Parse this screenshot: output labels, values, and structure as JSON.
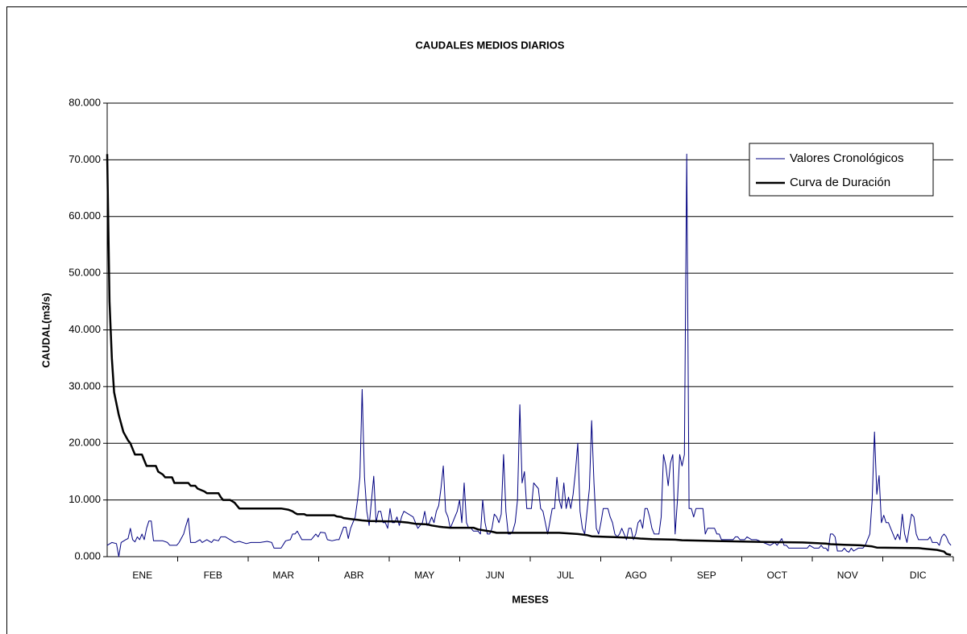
{
  "chart_data": {
    "type": "line",
    "title": "CAUDALES MEDIOS DIARIOS",
    "x_label": "MESES",
    "y_label": "CAUDAL(m3/s)",
    "categories": [
      "ENE",
      "FEB",
      "MAR",
      "ABR",
      "MAY",
      "JUN",
      "JUL",
      "AGO",
      "SEP",
      "OCT",
      "NOV",
      "DIC"
    ],
    "xlim": [
      0,
      365
    ],
    "ylim": [
      0,
      80
    ],
    "yticks": [
      {
        "value": 0,
        "label": "0.000"
      },
      {
        "value": 10,
        "label": "10.000"
      },
      {
        "value": 20,
        "label": "20.000"
      },
      {
        "value": 30,
        "label": "30.000"
      },
      {
        "value": 40,
        "label": "40.000"
      },
      {
        "value": 50,
        "label": "50.000"
      },
      {
        "value": 60,
        "label": "60.000"
      },
      {
        "value": 70,
        "label": "70.000"
      },
      {
        "value": 80,
        "label": "80.000"
      }
    ],
    "grid": true,
    "legend": "upper right",
    "series": [
      {
        "name": "Valores Cronológicos",
        "color": "#000080",
        "width": 1,
        "x": [
          0,
          2,
          4,
          5,
          6,
          8,
          9,
          10,
          11,
          12,
          13,
          14,
          15,
          16,
          17,
          18,
          19,
          20,
          24,
          26,
          27,
          30,
          31,
          33,
          34,
          35,
          36,
          38,
          40,
          41,
          43,
          45,
          46,
          48,
          49,
          51,
          53,
          55,
          57,
          60,
          62,
          64,
          66,
          69,
          71,
          72,
          75,
          77,
          79,
          80,
          81,
          82,
          84,
          85,
          88,
          90,
          91,
          92,
          94,
          95,
          97,
          99,
          100,
          102,
          103,
          104,
          105,
          106,
          107,
          108,
          109,
          110,
          111,
          112,
          113,
          115,
          116,
          117,
          118,
          119,
          120,
          121,
          122,
          123,
          124,
          125,
          126,
          127,
          128,
          130,
          132,
          133,
          134,
          136,
          137,
          138,
          139,
          140,
          141,
          142,
          143,
          144,
          145,
          146,
          147,
          148,
          150,
          151,
          152,
          153,
          154,
          155,
          156,
          157,
          158,
          160,
          161,
          162,
          163,
          164,
          165,
          166,
          167,
          168,
          169,
          170,
          171,
          172,
          173,
          174,
          175,
          176,
          177,
          178,
          179,
          180,
          181,
          183,
          184,
          186,
          187,
          188,
          189,
          190,
          192,
          193,
          194,
          195,
          196,
          197,
          198,
          199,
          200,
          201,
          202,
          203,
          204,
          205,
          206,
          207,
          208,
          209,
          210,
          211,
          212,
          213,
          214,
          216,
          217,
          218,
          219,
          220,
          221,
          222,
          224,
          225,
          226,
          227,
          228,
          229,
          230,
          231,
          232,
          233,
          234,
          235,
          236,
          238,
          239,
          240,
          241,
          242,
          243,
          244,
          245,
          246,
          247,
          248,
          249,
          250,
          251,
          252,
          253,
          254,
          256,
          257,
          258,
          259,
          262,
          263,
          264,
          265,
          266,
          270,
          271,
          272,
          273,
          275,
          276,
          278,
          280,
          283,
          286,
          288,
          289,
          291,
          292,
          293,
          294,
          297,
          300,
          302,
          303,
          305,
          307,
          308,
          309,
          310,
          311,
          312,
          313,
          314,
          315,
          317,
          318,
          319,
          320,
          321,
          322,
          324,
          326,
          327,
          329,
          330,
          331,
          332,
          333,
          334,
          335,
          336,
          337,
          338,
          339,
          340,
          341,
          342,
          343,
          344,
          345,
          346,
          347,
          348,
          349,
          350,
          354,
          355,
          356,
          358,
          359,
          360,
          361,
          362,
          363,
          364
        ],
        "values": [
          2.0,
          2.5,
          2.3,
          0,
          2.5,
          3,
          3.2,
          5,
          3,
          2.6,
          3.5,
          3,
          4,
          3,
          5,
          6.3,
          6.3,
          2.8,
          2.8,
          2.5,
          2,
          2,
          2.5,
          4,
          5.5,
          6.8,
          2.5,
          2.5,
          3,
          2.5,
          3,
          2.5,
          3,
          2.8,
          3.5,
          3.5,
          3,
          2.5,
          2.7,
          2.3,
          2.5,
          2.5,
          2.5,
          2.7,
          2.5,
          1.5,
          1.5,
          2.8,
          3,
          4,
          4,
          4.5,
          3,
          3,
          3,
          4,
          3.5,
          4.3,
          4.2,
          3,
          2.8,
          3,
          3,
          5.2,
          5.2,
          3.2,
          5,
          6,
          7,
          10,
          14,
          29.5,
          14,
          8,
          5.5,
          14.2,
          6,
          8,
          8,
          6,
          6,
          5,
          8.5,
          6,
          6,
          7,
          5.5,
          7,
          8,
          7.5,
          7,
          6,
          5,
          6,
          8,
          5.5,
          6,
          7,
          6,
          8,
          9,
          12,
          16,
          8,
          7,
          5,
          7,
          8,
          10,
          6,
          13,
          6,
          5,
          5,
          4.5,
          4.5,
          4,
          10,
          6,
          4,
          4,
          5,
          7.5,
          7,
          6,
          7.5,
          18,
          8,
          4,
          4,
          4.5,
          6,
          10,
          26.8,
          13,
          15,
          8.5,
          8.5,
          13,
          12,
          8.5,
          8,
          6,
          4,
          8.5,
          8.5,
          14,
          10,
          8.5,
          13,
          8.5,
          10.5,
          8.5,
          11,
          15,
          20,
          8,
          5,
          4,
          8,
          12,
          24,
          13,
          5,
          4,
          6,
          8.5,
          8.5,
          7,
          6,
          4,
          3.5,
          4,
          5,
          3,
          5,
          5,
          3,
          4,
          6,
          6.5,
          5,
          8.5,
          8.5,
          7,
          5,
          4,
          4,
          7,
          18,
          16,
          12.5,
          16.5,
          18,
          4,
          10,
          18,
          16,
          18,
          71,
          8.5,
          8.5,
          7,
          8.5,
          8.5,
          8.5,
          4,
          5,
          5,
          4,
          4,
          3,
          3,
          3,
          3.5,
          3.5,
          3,
          3,
          3.5,
          3,
          3,
          2.5,
          2,
          2.5,
          2,
          3.2,
          2,
          2,
          1.5,
          1.5,
          1.5,
          1.5,
          2,
          1.5,
          1.5,
          2,
          1.5,
          1.5,
          1,
          4,
          4,
          3.5,
          1,
          1,
          1.5,
          1,
          0.8,
          1.5,
          1,
          1.5,
          1.5,
          2,
          4,
          10,
          22,
          11,
          14.3,
          6,
          7.3,
          6,
          6,
          5,
          4,
          3,
          4,
          3,
          7.5,
          4,
          2.5,
          5,
          7.5,
          7,
          4,
          3,
          3,
          3.5,
          2.5,
          2.5,
          2,
          3.5,
          4,
          3.5,
          2.5,
          2
        ]
      },
      {
        "name": "Curva de Duración",
        "color": "#000000",
        "width": 2.5,
        "x": [
          0,
          1,
          2,
          3,
          5,
          7,
          9,
          10,
          11,
          12,
          15,
          16,
          17,
          21,
          22,
          24,
          25,
          28,
          29,
          35,
          36,
          38,
          39,
          42,
          43,
          48,
          49,
          50,
          53,
          55,
          56,
          57,
          75,
          78,
          80,
          81,
          82,
          85,
          86,
          98,
          99,
          101,
          102,
          106,
          108,
          110,
          113,
          125,
          130,
          133,
          138,
          140,
          143,
          145,
          148,
          158,
          160,
          163,
          166,
          168,
          195,
          203,
          207,
          209,
          215,
          222,
          227,
          230,
          235,
          245,
          248,
          258,
          270,
          283,
          300,
          310,
          312,
          318,
          325,
          330,
          332,
          350,
          358,
          361,
          362,
          364
        ],
        "values": [
          71,
          45,
          35,
          29,
          25,
          22,
          20.5,
          20,
          19,
          18,
          18,
          17,
          16,
          16,
          15,
          14.5,
          14,
          14,
          13,
          13,
          12.5,
          12.5,
          12,
          11.5,
          11.2,
          11.2,
          10.5,
          10,
          10,
          9.5,
          9,
          8.5,
          8.5,
          8.3,
          8,
          7.7,
          7.5,
          7.5,
          7.3,
          7.3,
          7.1,
          7,
          6.8,
          6.6,
          6.5,
          6.4,
          6.3,
          6.2,
          6,
          5.8,
          5.7,
          5.5,
          5.3,
          5.2,
          5.1,
          5.1,
          4.8,
          4.6,
          4.4,
          4.2,
          4.2,
          4,
          3.8,
          3.6,
          3.5,
          3.4,
          3.3,
          3.2,
          3.1,
          3,
          2.9,
          2.8,
          2.7,
          2.6,
          2.5,
          2.3,
          2.2,
          2.1,
          2.0,
          1.8,
          1.6,
          1.5,
          1.2,
          0.9,
          0.5,
          0.3
        ]
      }
    ]
  }
}
